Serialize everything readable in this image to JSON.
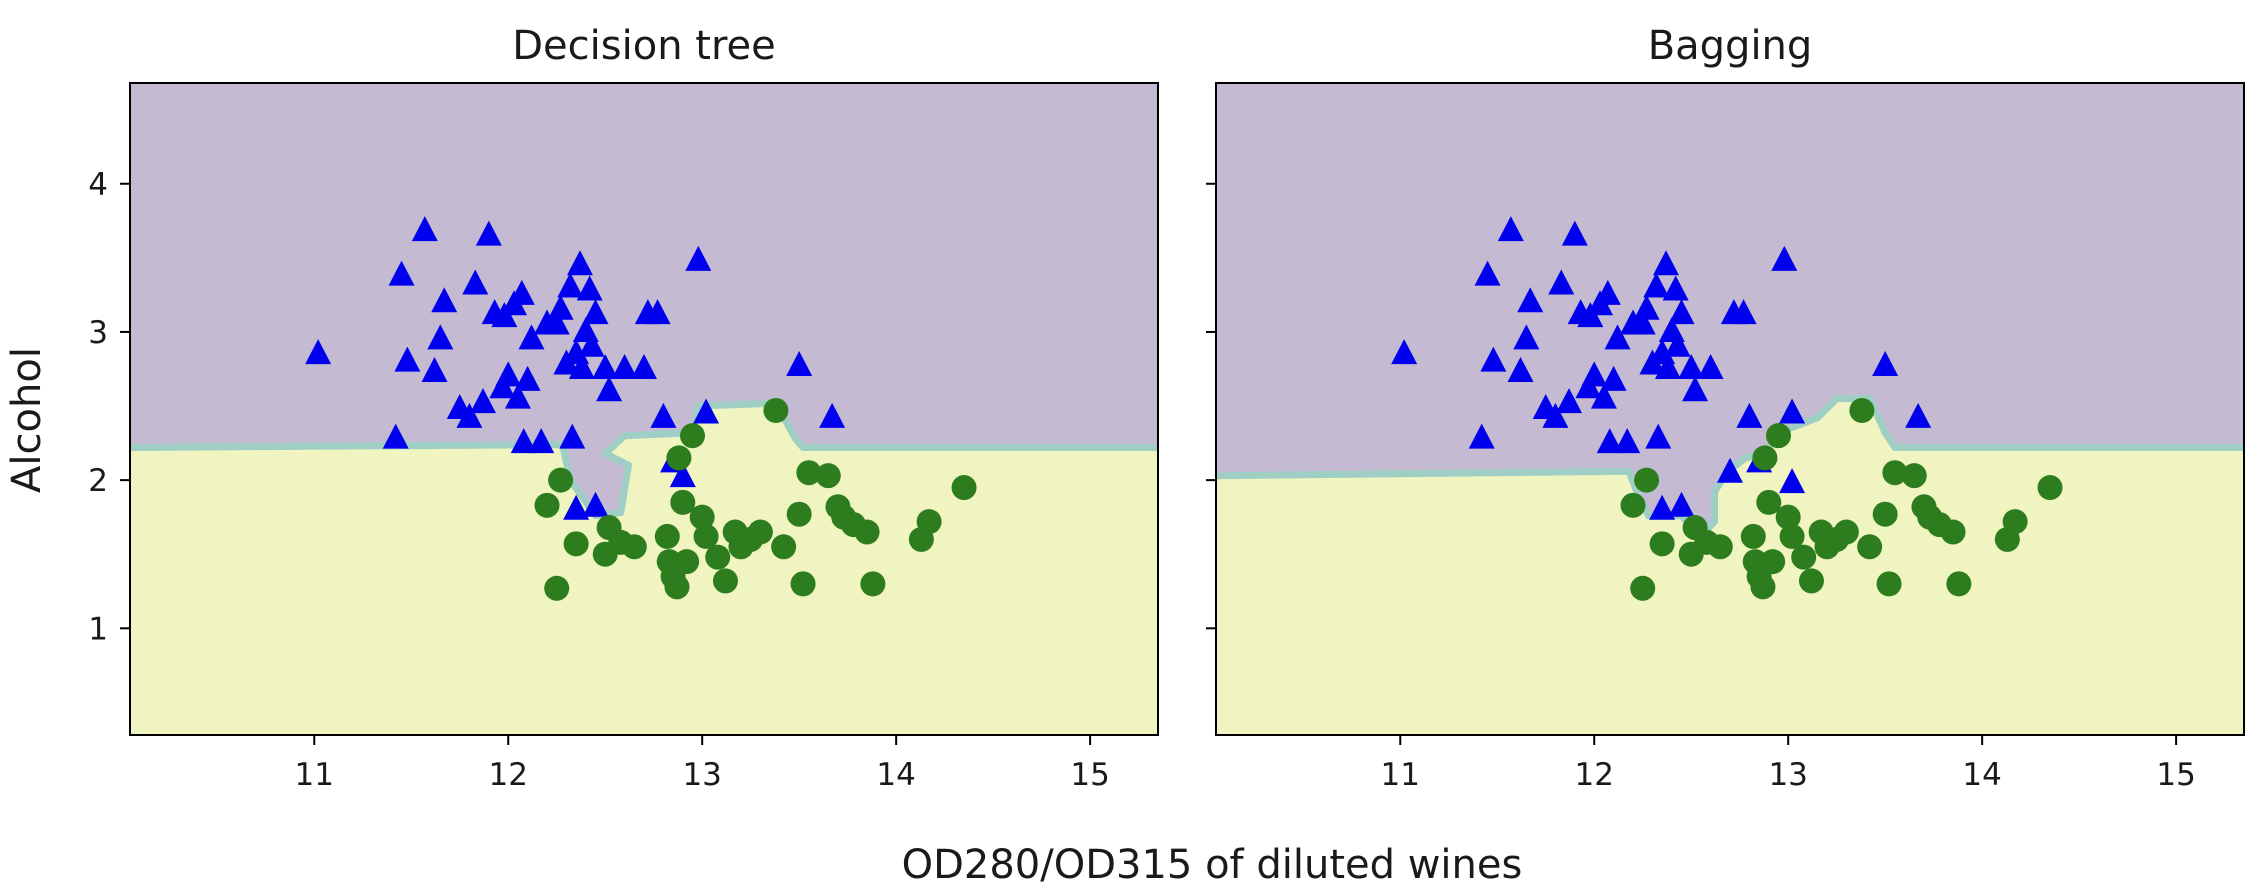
{
  "figure": {
    "xlabel": "OD280/OD315 of diluted wines",
    "ylabel": "Alcohol"
  },
  "colors": {
    "class0_region": "#c4bbd2",
    "class1_region": "#f0f4c0",
    "boundary_band": "#9fcfc4",
    "class0_marker": "#0000ee",
    "class1_marker": "#2d7d1e",
    "axes_frame": "#000000"
  },
  "chart_data": [
    {
      "type": "scatter",
      "title": "Decision tree",
      "xlim": [
        10.05,
        15.35
      ],
      "ylim": [
        0.28,
        4.68
      ],
      "xticks": [
        11,
        12,
        13,
        14,
        15
      ],
      "yticks": [
        1,
        2,
        3,
        4
      ],
      "grid": false,
      "decision_boundary": [
        [
          10.05,
          2.22
        ],
        [
          12.28,
          2.24
        ],
        [
          12.32,
          2.0
        ],
        [
          12.45,
          1.76
        ],
        [
          12.58,
          1.78
        ],
        [
          12.62,
          2.1
        ],
        [
          12.5,
          2.18
        ],
        [
          12.6,
          2.3
        ],
        [
          12.95,
          2.32
        ],
        [
          12.98,
          2.5
        ],
        [
          13.38,
          2.52
        ],
        [
          13.48,
          2.28
        ],
        [
          13.52,
          2.22
        ],
        [
          15.35,
          2.22
        ]
      ],
      "series": [
        {
          "marker": "triangle",
          "points": [
            [
              11.02,
              2.85
            ],
            [
              11.42,
              2.28
            ],
            [
              11.45,
              3.38
            ],
            [
              11.48,
              2.8
            ],
            [
              11.57,
              3.68
            ],
            [
              11.62,
              2.73
            ],
            [
              11.65,
              2.95
            ],
            [
              11.67,
              3.2
            ],
            [
              11.75,
              2.48
            ],
            [
              11.8,
              2.42
            ],
            [
              11.83,
              3.32
            ],
            [
              11.87,
              2.52
            ],
            [
              11.9,
              3.65
            ],
            [
              11.93,
              3.12
            ],
            [
              11.97,
              2.62
            ],
            [
              11.98,
              3.1
            ],
            [
              12.0,
              2.7
            ],
            [
              12.03,
              3.18
            ],
            [
              12.05,
              2.55
            ],
            [
              12.07,
              3.25
            ],
            [
              12.08,
              2.25
            ],
            [
              12.1,
              2.67
            ],
            [
              12.12,
              2.95
            ],
            [
              12.17,
              2.25
            ],
            [
              12.2,
              3.05
            ],
            [
              12.25,
              3.05
            ],
            [
              12.27,
              3.15
            ],
            [
              12.3,
              2.78
            ],
            [
              12.32,
              3.3
            ],
            [
              12.33,
              2.28
            ],
            [
              12.35,
              2.85
            ],
            [
              12.37,
              3.45
            ],
            [
              12.38,
              2.75
            ],
            [
              12.4,
              3.0
            ],
            [
              12.42,
              3.28
            ],
            [
              12.43,
              2.9
            ],
            [
              12.45,
              3.12
            ],
            [
              12.5,
              2.75
            ],
            [
              12.52,
              2.6
            ],
            [
              12.6,
              2.75
            ],
            [
              12.7,
              2.75
            ],
            [
              12.72,
              3.12
            ],
            [
              12.77,
              3.12
            ],
            [
              12.8,
              2.42
            ],
            [
              12.85,
              2.12
            ],
            [
              12.9,
              2.02
            ],
            [
              12.98,
              3.48
            ],
            [
              13.02,
              2.45
            ],
            [
              13.5,
              2.77
            ],
            [
              13.67,
              2.42
            ],
            [
              12.35,
              1.8
            ],
            [
              12.45,
              1.82
            ]
          ]
        },
        {
          "marker": "circle",
          "points": [
            [
              12.2,
              1.83
            ],
            [
              12.25,
              1.27
            ],
            [
              12.27,
              2.0
            ],
            [
              12.35,
              1.57
            ],
            [
              12.5,
              1.5
            ],
            [
              12.52,
              1.68
            ],
            [
              12.58,
              1.58
            ],
            [
              12.65,
              1.55
            ],
            [
              12.82,
              1.62
            ],
            [
              12.83,
              1.45
            ],
            [
              12.85,
              1.35
            ],
            [
              12.87,
              1.28
            ],
            [
              12.9,
              1.85
            ],
            [
              12.92,
              1.45
            ],
            [
              12.95,
              2.3
            ],
            [
              13.0,
              1.75
            ],
            [
              13.12,
              1.32
            ],
            [
              13.17,
              1.65
            ],
            [
              13.2,
              1.55
            ],
            [
              13.25,
              1.6
            ],
            [
              13.3,
              1.65
            ],
            [
              13.38,
              2.47
            ],
            [
              13.42,
              1.55
            ],
            [
              13.5,
              1.77
            ],
            [
              13.52,
              1.3
            ],
            [
              13.55,
              2.05
            ],
            [
              13.65,
              2.03
            ],
            [
              13.7,
              1.82
            ],
            [
              13.73,
              1.75
            ],
            [
              13.78,
              1.7
            ],
            [
              13.85,
              1.65
            ],
            [
              13.88,
              1.3
            ],
            [
              14.13,
              1.6
            ],
            [
              14.17,
              1.72
            ],
            [
              14.35,
              1.95
            ],
            [
              12.88,
              2.15
            ],
            [
              13.02,
              1.62
            ],
            [
              13.08,
              1.48
            ]
          ]
        }
      ]
    },
    {
      "type": "scatter",
      "title": "Bagging",
      "xlim": [
        10.05,
        15.35
      ],
      "ylim": [
        0.28,
        4.68
      ],
      "xticks": [
        11,
        12,
        13,
        14,
        15
      ],
      "yticks": [
        1,
        2,
        3,
        4
      ],
      "grid": false,
      "decision_boundary": [
        [
          10.05,
          2.03
        ],
        [
          12.18,
          2.06
        ],
        [
          12.22,
          1.92
        ],
        [
          12.28,
          1.76
        ],
        [
          12.45,
          1.76
        ],
        [
          12.55,
          1.62
        ],
        [
          12.62,
          1.72
        ],
        [
          12.62,
          1.92
        ],
        [
          12.68,
          2.05
        ],
        [
          12.78,
          2.15
        ],
        [
          12.88,
          2.18
        ],
        [
          12.95,
          2.32
        ],
        [
          13.15,
          2.42
        ],
        [
          13.25,
          2.55
        ],
        [
          13.42,
          2.55
        ],
        [
          13.5,
          2.32
        ],
        [
          13.55,
          2.22
        ],
        [
          15.35,
          2.22
        ]
      ],
      "series": [
        {
          "marker": "triangle",
          "points": [
            [
              11.02,
              2.85
            ],
            [
              11.42,
              2.28
            ],
            [
              11.45,
              3.38
            ],
            [
              11.48,
              2.8
            ],
            [
              11.57,
              3.68
            ],
            [
              11.62,
              2.73
            ],
            [
              11.65,
              2.95
            ],
            [
              11.67,
              3.2
            ],
            [
              11.75,
              2.48
            ],
            [
              11.8,
              2.42
            ],
            [
              11.83,
              3.32
            ],
            [
              11.87,
              2.52
            ],
            [
              11.9,
              3.65
            ],
            [
              11.93,
              3.12
            ],
            [
              11.97,
              2.62
            ],
            [
              11.98,
              3.1
            ],
            [
              12.0,
              2.7
            ],
            [
              12.03,
              3.18
            ],
            [
              12.05,
              2.55
            ],
            [
              12.07,
              3.25
            ],
            [
              12.08,
              2.25
            ],
            [
              12.1,
              2.67
            ],
            [
              12.12,
              2.95
            ],
            [
              12.17,
              2.25
            ],
            [
              12.2,
              3.05
            ],
            [
              12.25,
              3.05
            ],
            [
              12.27,
              3.15
            ],
            [
              12.3,
              2.78
            ],
            [
              12.32,
              3.3
            ],
            [
              12.33,
              2.28
            ],
            [
              12.35,
              2.85
            ],
            [
              12.37,
              3.45
            ],
            [
              12.38,
              2.75
            ],
            [
              12.4,
              3.0
            ],
            [
              12.42,
              3.28
            ],
            [
              12.43,
              2.9
            ],
            [
              12.45,
              3.12
            ],
            [
              12.5,
              2.75
            ],
            [
              12.52,
              2.6
            ],
            [
              12.6,
              2.75
            ],
            [
              12.7,
              2.05
            ],
            [
              12.72,
              3.12
            ],
            [
              12.77,
              3.12
            ],
            [
              12.8,
              2.42
            ],
            [
              12.85,
              2.12
            ],
            [
              13.02,
              1.98
            ],
            [
              12.98,
              3.48
            ],
            [
              13.02,
              2.45
            ],
            [
              13.5,
              2.77
            ],
            [
              13.67,
              2.42
            ],
            [
              12.35,
              1.8
            ],
            [
              12.45,
              1.82
            ]
          ]
        },
        {
          "marker": "circle",
          "points": [
            [
              12.2,
              1.83
            ],
            [
              12.25,
              1.27
            ],
            [
              12.27,
              2.0
            ],
            [
              12.35,
              1.57
            ],
            [
              12.5,
              1.5
            ],
            [
              12.52,
              1.68
            ],
            [
              12.58,
              1.58
            ],
            [
              12.65,
              1.55
            ],
            [
              12.82,
              1.62
            ],
            [
              12.83,
              1.45
            ],
            [
              12.85,
              1.35
            ],
            [
              12.87,
              1.28
            ],
            [
              12.9,
              1.85
            ],
            [
              12.92,
              1.45
            ],
            [
              12.95,
              2.3
            ],
            [
              13.0,
              1.75
            ],
            [
              13.12,
              1.32
            ],
            [
              13.17,
              1.65
            ],
            [
              13.2,
              1.55
            ],
            [
              13.25,
              1.6
            ],
            [
              13.3,
              1.65
            ],
            [
              13.38,
              2.47
            ],
            [
              13.42,
              1.55
            ],
            [
              13.5,
              1.77
            ],
            [
              13.52,
              1.3
            ],
            [
              13.55,
              2.05
            ],
            [
              13.65,
              2.03
            ],
            [
              13.7,
              1.82
            ],
            [
              13.73,
              1.75
            ],
            [
              13.78,
              1.7
            ],
            [
              13.85,
              1.65
            ],
            [
              13.88,
              1.3
            ],
            [
              14.13,
              1.6
            ],
            [
              14.17,
              1.72
            ],
            [
              14.35,
              1.95
            ],
            [
              12.88,
              2.15
            ],
            [
              13.02,
              1.62
            ],
            [
              13.08,
              1.48
            ]
          ]
        }
      ]
    }
  ]
}
